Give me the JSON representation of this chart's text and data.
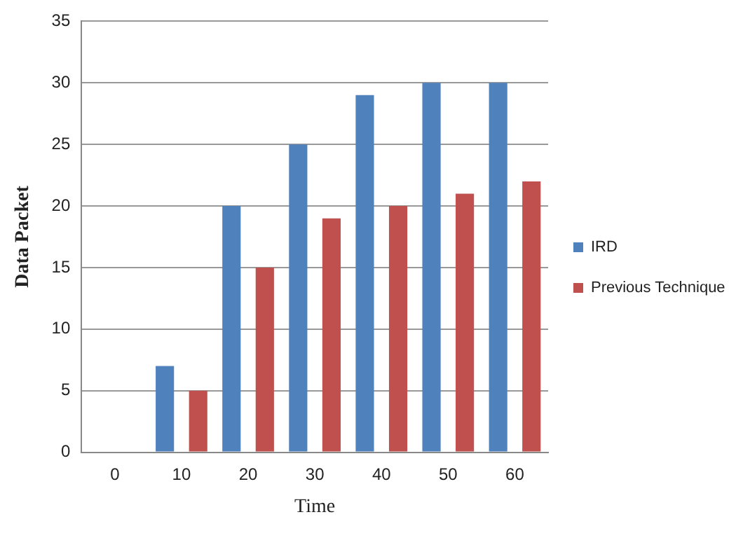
{
  "chart_data": {
    "type": "bar",
    "xlabel": "Time",
    "ylabel": "Data Packet",
    "categories": [
      "0",
      "10",
      "20",
      "30",
      "40",
      "50",
      "60"
    ],
    "series": [
      {
        "name": "IRD",
        "color": "#4f81bd",
        "values": [
          0,
          7,
          20,
          25,
          29,
          30,
          30
        ]
      },
      {
        "name": "Previous Technique",
        "color": "#c0504d",
        "values": [
          0,
          5,
          15,
          19,
          20,
          21,
          22
        ]
      }
    ],
    "ylim": [
      0,
      35
    ],
    "yticks": [
      0,
      5,
      10,
      15,
      20,
      25,
      30,
      35
    ],
    "grid": "y",
    "legend": "right"
  }
}
